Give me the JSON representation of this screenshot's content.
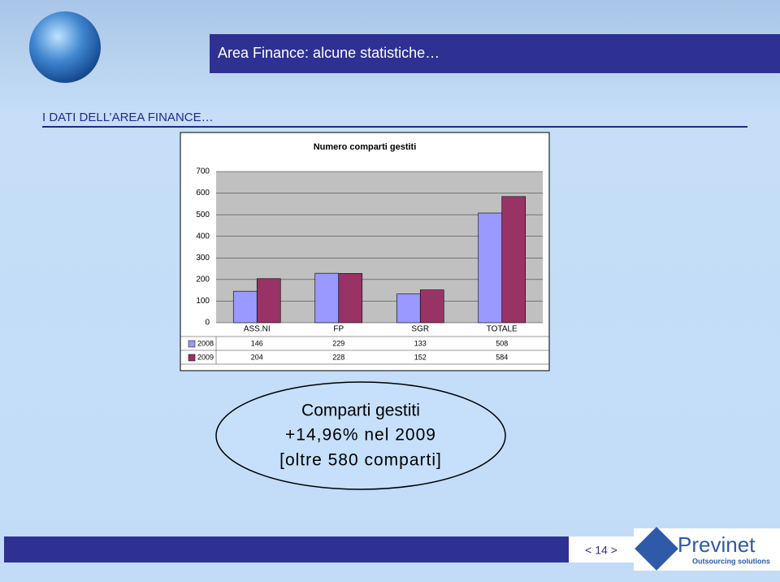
{
  "header": {
    "title": "Area Finance: alcune statistiche…"
  },
  "section_title": "I DATI DELL’AREA FINANCE…",
  "chart_data": {
    "type": "bar",
    "title": "Numero comparti gestiti",
    "categories": [
      "ASS.NI",
      "FP",
      "SGR",
      "TOTALE"
    ],
    "series": [
      {
        "name": "2008",
        "color": "#9999ff",
        "values": [
          146,
          229,
          133,
          508
        ]
      },
      {
        "name": "2009",
        "color": "#993366",
        "values": [
          204,
          228,
          152,
          584
        ]
      }
    ],
    "ylim": [
      0,
      700
    ],
    "yticks": [
      0,
      100,
      200,
      300,
      400,
      500,
      600,
      700
    ],
    "grid": true,
    "data_table": true
  },
  "callout": {
    "lines": [
      "Comparti gestiti",
      "+14,96% nel 2009",
      "[oltre 580 comparti]"
    ]
  },
  "footer": {
    "page": "< 14 >",
    "brand": "Previnet",
    "tagline": "Outsourcing solutions"
  }
}
